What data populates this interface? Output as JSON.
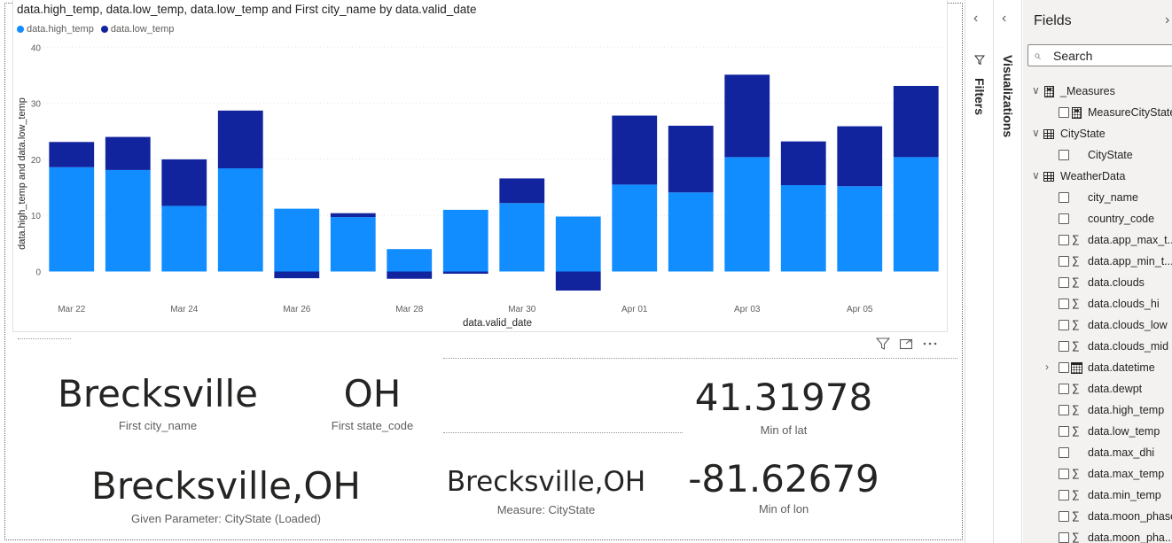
{
  "chart": {
    "title": "data.high_temp, data.low_temp, data.low_temp and First city_name by data.valid_date",
    "legend": [
      {
        "label": "data.high_temp",
        "color": "#118DFF"
      },
      {
        "label": "data.low_temp",
        "color": "#12239E"
      }
    ],
    "y_axis_label": "data.high_temp and data.low_temp",
    "x_axis_label": "data.valid_date",
    "y_ticks": [
      "40",
      "30",
      "20",
      "10",
      "0"
    ],
    "x_ticks": [
      "Mar 22",
      "Mar 24",
      "Mar 26",
      "Mar 28",
      "Mar 30",
      "Apr 01",
      "Apr 03",
      "Apr 05"
    ]
  },
  "chart_data": {
    "type": "bar",
    "stacked": true,
    "title": "data.high_temp, data.low_temp, data.low_temp and First city_name by data.valid_date",
    "xlabel": "data.valid_date",
    "ylabel": "data.high_temp and data.low_temp",
    "ylim": [
      -4,
      40
    ],
    "grid": true,
    "legend_position": "top-left",
    "categories": [
      "Mar 22",
      "Mar 23",
      "Mar 24",
      "Mar 25",
      "Mar 26",
      "Mar 27",
      "Mar 28",
      "Mar 29",
      "Mar 30",
      "Mar 31",
      "Apr 01",
      "Apr 02",
      "Apr 03",
      "Apr 04",
      "Apr 05",
      "Apr 06"
    ],
    "series": [
      {
        "name": "data.high_temp",
        "color": "#118DFF",
        "values": [
          18.6,
          18.1,
          11.7,
          18.4,
          11.2,
          9.7,
          4.0,
          11.0,
          12.2,
          9.8,
          15.5,
          14.1,
          20.4,
          15.4,
          15.2,
          20.4
        ]
      },
      {
        "name": "data.low_temp",
        "color": "#12239E",
        "values": [
          4.5,
          5.9,
          8.3,
          10.3,
          -1.2,
          0.7,
          -1.3,
          -0.4,
          4.4,
          -3.4,
          12.3,
          11.9,
          14.7,
          7.8,
          10.7,
          12.7
        ]
      }
    ]
  },
  "visual_header": {
    "filter_icon": "filter-icon",
    "focus_icon": "focus-mode-icon",
    "more_icon": "more-options-icon"
  },
  "cards": {
    "city": {
      "value": "Brecksville",
      "label": "First city_name"
    },
    "state": {
      "value": "OH",
      "label": "First state_code"
    },
    "lat": {
      "value": "41.31978",
      "label": "Min of lat"
    },
    "param": {
      "value": "Brecksville,OH",
      "label": "Given Parameter: CityState (Loaded)"
    },
    "measure": {
      "value": "Brecksville,OH",
      "label": "Measure: CityState"
    },
    "lon": {
      "value": "-81.62679",
      "label": "Min of lon"
    }
  },
  "panes": {
    "filters_label": "Filters",
    "visualizations_label": "Visualizations",
    "fields_title": "Fields",
    "search_placeholder": "Search"
  },
  "fields": [
    {
      "label": "_Measures",
      "kind": "table-calc",
      "expanded": true
    },
    {
      "label": "MeasureCityState",
      "kind": "measure"
    },
    {
      "label": "CityState",
      "kind": "table",
      "expanded": true
    },
    {
      "label": "CityState",
      "kind": "field"
    },
    {
      "label": "WeatherData",
      "kind": "table",
      "expanded": true
    },
    {
      "label": "city_name",
      "kind": "field"
    },
    {
      "label": "country_code",
      "kind": "field"
    },
    {
      "label": "data.app_max_t...",
      "kind": "sum"
    },
    {
      "label": "data.app_min_t...",
      "kind": "sum"
    },
    {
      "label": "data.clouds",
      "kind": "sum"
    },
    {
      "label": "data.clouds_hi",
      "kind": "sum"
    },
    {
      "label": "data.clouds_low",
      "kind": "sum"
    },
    {
      "label": "data.clouds_mid",
      "kind": "sum"
    },
    {
      "label": "data.datetime",
      "kind": "date"
    },
    {
      "label": "data.dewpt",
      "kind": "sum"
    },
    {
      "label": "data.high_temp",
      "kind": "sum"
    },
    {
      "label": "data.low_temp",
      "kind": "sum"
    },
    {
      "label": "data.max_dhi",
      "kind": "field"
    },
    {
      "label": "data.max_temp",
      "kind": "sum"
    },
    {
      "label": "data.min_temp",
      "kind": "sum"
    },
    {
      "label": "data.moon_phase",
      "kind": "sum"
    },
    {
      "label": "data.moon_pha...",
      "kind": "sum"
    }
  ]
}
